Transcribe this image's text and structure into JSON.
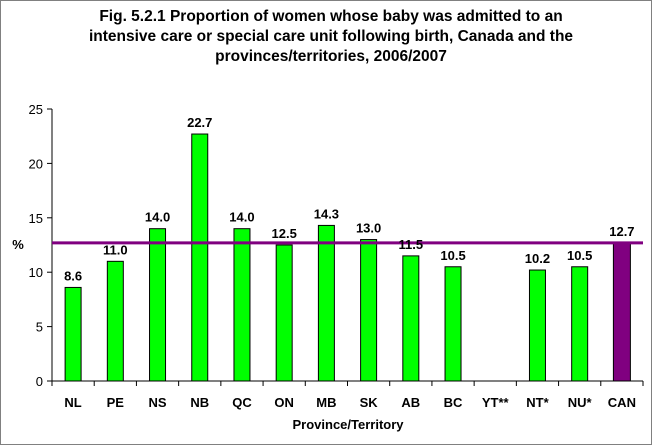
{
  "chart_data": {
    "type": "bar",
    "title_lines": [
      "Fig. 5.2.1 Proportion of women whose baby was admitted to an",
      "intensive care or special care unit following birth, Canada and the",
      "provinces/territories, 2006/2007"
    ],
    "xlabel": "Province/Territory",
    "ylabel": "%",
    "ylim": [
      0,
      25
    ],
    "yticks": [
      0,
      5,
      10,
      15,
      20,
      25
    ],
    "categories": [
      "NL",
      "PE",
      "NS",
      "NB",
      "QC",
      "ON",
      "MB",
      "SK",
      "AB",
      "BC",
      "YT**",
      "NT*",
      "NU*",
      "CAN"
    ],
    "values": [
      8.6,
      11.0,
      14.0,
      22.7,
      14.0,
      12.5,
      14.3,
      13.0,
      11.5,
      10.5,
      null,
      10.2,
      10.5,
      12.7
    ],
    "data_labels": [
      "8.6",
      "11.0",
      "14.0",
      "22.7",
      "14.0",
      "12.5",
      "14.3",
      "13.0",
      "11.5",
      "10.5",
      "",
      "10.2",
      "10.5",
      "12.7"
    ],
    "reference_line": {
      "value": 12.7
    },
    "colors": {
      "bar": "#00ff00",
      "national_bar": "#800080",
      "reference_line": "#800080",
      "bar_outline": "#000000"
    },
    "grid": false,
    "legend": "none"
  }
}
